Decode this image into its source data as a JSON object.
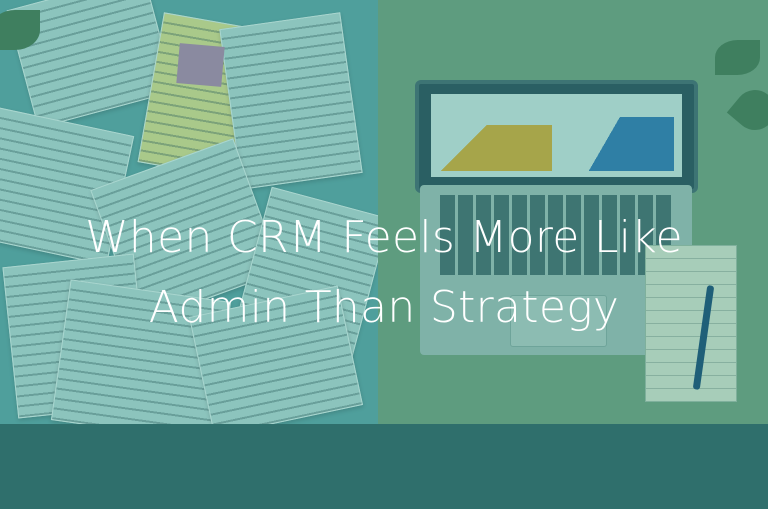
{
  "title": {
    "line1": "When CRM Feels More Like",
    "line2": "Admin Than Strategy"
  },
  "colors": {
    "left_overlay": "#4f9f9c",
    "right_overlay": "#5e9c7f",
    "title_text": "#ffffff"
  }
}
